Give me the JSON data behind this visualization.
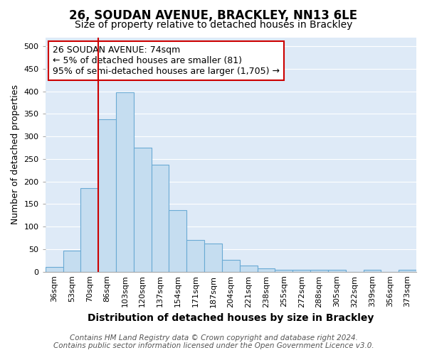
{
  "title_line1": "26, SOUDAN AVENUE, BRACKLEY, NN13 6LE",
  "title_line2": "Size of property relative to detached houses in Brackley",
  "xlabel": "Distribution of detached houses by size in Brackley",
  "ylabel": "Number of detached properties",
  "categories": [
    "36sqm",
    "53sqm",
    "70sqm",
    "86sqm",
    "103sqm",
    "120sqm",
    "137sqm",
    "154sqm",
    "171sqm",
    "187sqm",
    "204sqm",
    "221sqm",
    "238sqm",
    "255sqm",
    "272sqm",
    "288sqm",
    "305sqm",
    "322sqm",
    "339sqm",
    "356sqm",
    "373sqm"
  ],
  "values": [
    10,
    47,
    185,
    338,
    398,
    275,
    238,
    136,
    70,
    63,
    26,
    13,
    8,
    5,
    4,
    4,
    4,
    0,
    4,
    0,
    4
  ],
  "bar_color": "#c5ddf0",
  "bar_edge_color": "#6aaad4",
  "vline_x_index": 2,
  "vline_color": "#cc0000",
  "annotation_text": "26 SOUDAN AVENUE: 74sqm\n← 5% of detached houses are smaller (81)\n95% of semi-detached houses are larger (1,705) →",
  "annotation_box_facecolor": "#ffffff",
  "annotation_box_edgecolor": "#cc0000",
  "ylim": [
    0,
    520
  ],
  "yticks": [
    0,
    50,
    100,
    150,
    200,
    250,
    300,
    350,
    400,
    450,
    500
  ],
  "footer_line1": "Contains HM Land Registry data © Crown copyright and database right 2024.",
  "footer_line2": "Contains public sector information licensed under the Open Government Licence v3.0.",
  "fig_facecolor": "#ffffff",
  "plot_facecolor": "#deeaf7",
  "grid_color": "#ffffff",
  "title_fontsize": 12,
  "subtitle_fontsize": 10,
  "xlabel_fontsize": 10,
  "ylabel_fontsize": 9,
  "tick_fontsize": 8,
  "annotation_fontsize": 9,
  "footer_fontsize": 7.5
}
